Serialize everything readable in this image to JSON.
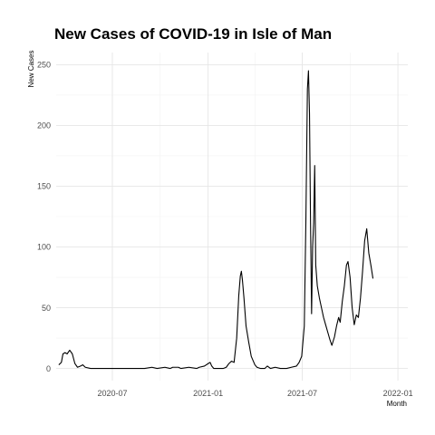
{
  "chart_data": {
    "type": "line",
    "title": "New Cases of COVID-19 in Isle of Man",
    "xlabel": "Month",
    "ylabel": "New Cases",
    "ylim": [
      -10,
      260
    ],
    "xlim": [
      "2020-03-15",
      "2022-01-20"
    ],
    "grid": true,
    "y_ticks": [
      0,
      50,
      100,
      150,
      200,
      250
    ],
    "x_ticks": [
      {
        "date": "2020-07-01",
        "label": "2020-07"
      },
      {
        "date": "2021-01-01",
        "label": "2021-01"
      },
      {
        "date": "2021-07-01",
        "label": "2021-07"
      },
      {
        "date": "2022-01-01",
        "label": "2022-01"
      }
    ],
    "series": [
      {
        "name": "New Cases",
        "color": "#000000",
        "points": [
          [
            "2020-03-20",
            3
          ],
          [
            "2020-03-25",
            5
          ],
          [
            "2020-03-28",
            12
          ],
          [
            "2020-04-01",
            13
          ],
          [
            "2020-04-05",
            12
          ],
          [
            "2020-04-10",
            15
          ],
          [
            "2020-04-15",
            12
          ],
          [
            "2020-04-20",
            4
          ],
          [
            "2020-04-25",
            1
          ],
          [
            "2020-05-01",
            2
          ],
          [
            "2020-05-05",
            3
          ],
          [
            "2020-05-10",
            1
          ],
          [
            "2020-05-20",
            0
          ],
          [
            "2020-06-15",
            0
          ],
          [
            "2020-08-01",
            0
          ],
          [
            "2020-09-01",
            0
          ],
          [
            "2020-09-15",
            1
          ],
          [
            "2020-09-25",
            0
          ],
          [
            "2020-10-10",
            1
          ],
          [
            "2020-10-20",
            0
          ],
          [
            "2020-10-25",
            1
          ],
          [
            "2020-11-05",
            1
          ],
          [
            "2020-11-10",
            0
          ],
          [
            "2020-11-25",
            1
          ],
          [
            "2020-12-10",
            0
          ],
          [
            "2020-12-15",
            1
          ],
          [
            "2020-12-25",
            2
          ],
          [
            "2021-01-01",
            4
          ],
          [
            "2021-01-05",
            5
          ],
          [
            "2021-01-08",
            2
          ],
          [
            "2021-01-12",
            0
          ],
          [
            "2021-01-20",
            0
          ],
          [
            "2021-01-30",
            0
          ],
          [
            "2021-02-05",
            1
          ],
          [
            "2021-02-10",
            4
          ],
          [
            "2021-02-15",
            6
          ],
          [
            "2021-02-20",
            5
          ],
          [
            "2021-02-25",
            25
          ],
          [
            "2021-03-01",
            60
          ],
          [
            "2021-03-04",
            76
          ],
          [
            "2021-03-06",
            80
          ],
          [
            "2021-03-08",
            73
          ],
          [
            "2021-03-11",
            58
          ],
          [
            "2021-03-15",
            35
          ],
          [
            "2021-03-20",
            22
          ],
          [
            "2021-03-25",
            10
          ],
          [
            "2021-04-01",
            3
          ],
          [
            "2021-04-05",
            1
          ],
          [
            "2021-04-12",
            0
          ],
          [
            "2021-04-20",
            0
          ],
          [
            "2021-04-25",
            2
          ],
          [
            "2021-05-01",
            0
          ],
          [
            "2021-05-10",
            1
          ],
          [
            "2021-05-20",
            0
          ],
          [
            "2021-06-01",
            0
          ],
          [
            "2021-06-10",
            1
          ],
          [
            "2021-06-20",
            2
          ],
          [
            "2021-06-25",
            5
          ],
          [
            "2021-06-30",
            10
          ],
          [
            "2021-07-05",
            35
          ],
          [
            "2021-07-08",
            120
          ],
          [
            "2021-07-11",
            230
          ],
          [
            "2021-07-13",
            245
          ],
          [
            "2021-07-15",
            210
          ],
          [
            "2021-07-17",
            120
          ],
          [
            "2021-07-19",
            45
          ],
          [
            "2021-07-21",
            100
          ],
          [
            "2021-07-23",
            120
          ],
          [
            "2021-07-25",
            167
          ],
          [
            "2021-07-27",
            85
          ],
          [
            "2021-07-30",
            68
          ],
          [
            "2021-08-03",
            58
          ],
          [
            "2021-08-07",
            50
          ],
          [
            "2021-08-11",
            42
          ],
          [
            "2021-08-15",
            36
          ],
          [
            "2021-08-19",
            30
          ],
          [
            "2021-08-23",
            24
          ],
          [
            "2021-08-27",
            19
          ],
          [
            "2021-09-01",
            26
          ],
          [
            "2021-09-05",
            35
          ],
          [
            "2021-09-09",
            42
          ],
          [
            "2021-09-12",
            38
          ],
          [
            "2021-09-16",
            55
          ],
          [
            "2021-09-20",
            68
          ],
          [
            "2021-09-24",
            85
          ],
          [
            "2021-09-27",
            88
          ],
          [
            "2021-10-01",
            75
          ],
          [
            "2021-10-05",
            50
          ],
          [
            "2021-10-09",
            36
          ],
          [
            "2021-10-13",
            44
          ],
          [
            "2021-10-17",
            42
          ],
          [
            "2021-10-21",
            58
          ],
          [
            "2021-10-25",
            80
          ],
          [
            "2021-10-29",
            105
          ],
          [
            "2021-11-02",
            115
          ],
          [
            "2021-11-06",
            95
          ],
          [
            "2021-11-10",
            85
          ],
          [
            "2021-11-14",
            74
          ]
        ]
      }
    ]
  }
}
